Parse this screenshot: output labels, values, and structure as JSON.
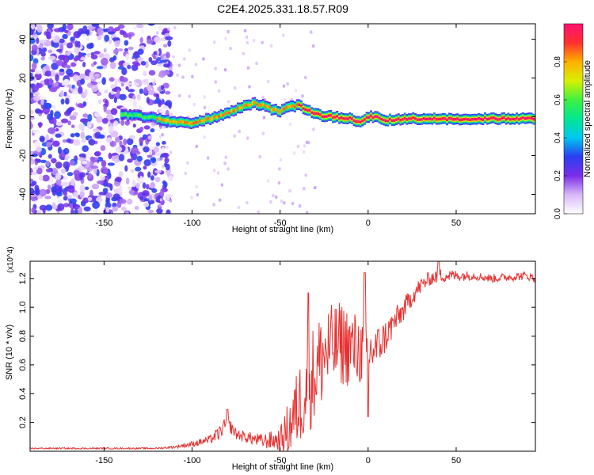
{
  "title": "C2E4.2025.331.18.57.R09",
  "chart_data": [
    {
      "type": "heatmap",
      "title": "C2E4.2025.331.18.57.R09",
      "xlabel": "Height of straight line (km)",
      "ylabel": "Frequency (Hz)",
      "xlim": [
        -192,
        95
      ],
      "ylim": [
        -50,
        48
      ],
      "xticks": [
        -150,
        -100,
        -50,
        0,
        50
      ],
      "yticks": [
        -40,
        -20,
        0,
        20,
        40
      ],
      "colorbar": {
        "label": "Normalized spectral amplitude",
        "range": [
          0.0,
          1.0
        ],
        "ticks": [
          0.0,
          0.2,
          0.4,
          0.6,
          0.8
        ],
        "tick_labels": [
          "0.0",
          "0.2",
          "0.4",
          "0.6",
          "0.8"
        ],
        "colors": [
          "#ffffff",
          "#d8b8f8",
          "#7a2ee8",
          "#2a3ef0",
          "#00c8f0",
          "#00e890",
          "#40f040",
          "#d8f000",
          "#ffb000",
          "#ff3030",
          "#ff1070"
        ]
      },
      "ridge": {
        "x": [
          -192,
          -140,
          -125,
          -110,
          -100,
          -90,
          -80,
          -72,
          -65,
          -60,
          -55,
          -50,
          -45,
          -40,
          -35,
          -28,
          -20,
          -10,
          -5,
          0,
          5,
          10,
          20,
          40,
          60,
          80,
          95
        ],
        "y": [
          0,
          1,
          0,
          -3,
          -3,
          -1,
          2,
          5,
          7,
          6,
          4,
          3,
          5,
          6,
          4,
          1,
          0,
          -1,
          -3,
          0,
          0,
          -2,
          -1,
          -1,
          -1,
          -1,
          -1
        ]
      }
    },
    {
      "type": "line",
      "xlabel": "Height of straight line (km)",
      "ylabel": "SNR (10 * v/v)",
      "y_multiplier": "(x10^4)",
      "xlim": [
        -192,
        95
      ],
      "ylim": [
        0,
        1.32
      ],
      "xticks": [
        -150,
        -100,
        -50,
        0,
        50
      ],
      "yticks": [
        0.2,
        0.4,
        0.6,
        0.8,
        1.0,
        1.2
      ],
      "ytick_labels": [
        "0.2",
        "0.4",
        "0.6",
        "0.8",
        "1.0",
        "1.2"
      ],
      "series": [
        {
          "name": "SNR",
          "color": "#e83030",
          "x": [
            -192,
            -150,
            -120,
            -110,
            -100,
            -90,
            -85,
            -80,
            -75,
            -70,
            -60,
            -50,
            -45,
            -40,
            -35,
            -30,
            -25,
            -20,
            -15,
            -10,
            -5,
            0,
            5,
            10,
            15,
            20,
            25,
            30,
            35,
            40,
            50,
            60,
            70,
            80,
            90,
            95
          ],
          "y": [
            0.02,
            0.02,
            0.02,
            0.03,
            0.05,
            0.08,
            0.12,
            0.2,
            0.12,
            0.1,
            0.07,
            0.08,
            0.16,
            0.3,
            0.45,
            0.55,
            0.68,
            0.72,
            0.75,
            0.72,
            0.7,
            0.68,
            0.72,
            0.8,
            0.9,
            0.98,
            1.08,
            1.15,
            1.2,
            1.22,
            1.22,
            1.22,
            1.2,
            1.21,
            1.22,
            1.2
          ],
          "noise_amplitude": [
            0.005,
            0.005,
            0.005,
            0.01,
            0.02,
            0.03,
            0.05,
            0.05,
            0.04,
            0.04,
            0.05,
            0.08,
            0.2,
            0.28,
            0.35,
            0.35,
            0.35,
            0.3,
            0.3,
            0.28,
            0.25,
            0.2,
            0.15,
            0.12,
            0.1,
            0.08,
            0.07,
            0.06,
            0.05,
            0.05,
            0.04,
            0.03,
            0.03,
            0.03,
            0.03,
            0.03
          ],
          "peaks": [
            {
              "x": -80,
              "y": 0.29
            },
            {
              "x": -34,
              "y": 1.1
            },
            {
              "x": -2,
              "y": 1.24
            },
            {
              "x": 0,
              "y": 0.24
            },
            {
              "x": 40,
              "y": 1.32
            }
          ]
        }
      ]
    }
  ]
}
